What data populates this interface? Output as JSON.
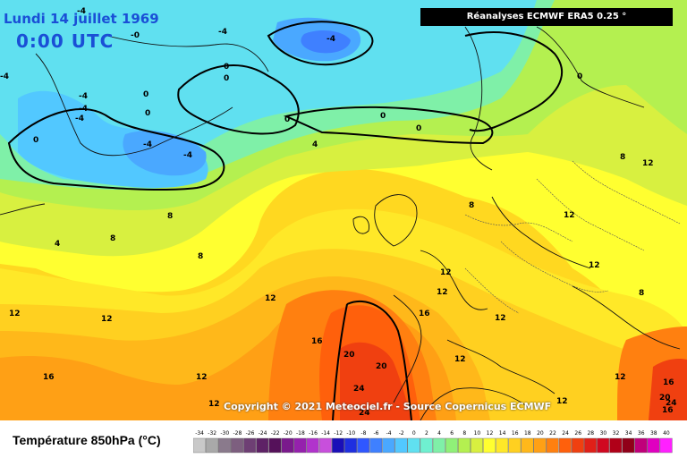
{
  "header": {
    "date": "Lundi 14 juillet 1969",
    "time": "0:00 UTC",
    "source": "Réanalyses ECMWF ERA5 0.25 °"
  },
  "copyright": "Copyright © 2021 Meteociel.fr - Source Copernicus ECMWF",
  "legend": {
    "title": "Température 850hPa (°C)",
    "ticks": [
      "-34",
      "-32",
      "-30",
      "-28",
      "-26",
      "-24",
      "-22",
      "-20",
      "-18",
      "-16",
      "-14",
      "-12",
      "-10",
      "-8",
      "-6",
      "-4",
      "-2",
      "0",
      "2",
      "4",
      "6",
      "8",
      "10",
      "12",
      "14",
      "16",
      "18",
      "20",
      "22",
      "24",
      "26",
      "28",
      "30",
      "32",
      "34",
      "36",
      "38",
      "40"
    ],
    "colors": [
      "#c9c9c9",
      "#a9a9a9",
      "#8a7a8c",
      "#7d5f7f",
      "#6e3f74",
      "#5e2266",
      "#55115a",
      "#7a1a8c",
      "#9521ad",
      "#b133cc",
      "#c84fdc",
      "#1a0fb8",
      "#1f2fe0",
      "#2f57ff",
      "#3f80ff",
      "#4aa8ff",
      "#52c8ff",
      "#60e0f0",
      "#6ff0d0",
      "#7ff0a8",
      "#90f078",
      "#b4f050",
      "#d8f040",
      "#ffff30",
      "#ffe828",
      "#ffd020",
      "#ffb81a",
      "#ffa015",
      "#ff8010",
      "#ff600c",
      "#f04010",
      "#e02018",
      "#d00820",
      "#b00018",
      "#900018",
      "#c0007a",
      "#e000c0",
      "#ff20ff"
    ]
  },
  "map": {
    "labels": [
      "-4",
      "-0",
      "0",
      "0",
      "-4",
      "0",
      "-4",
      "-4",
      "-4",
      "-4",
      "-4",
      "0",
      "0",
      "0",
      "0",
      "0",
      "0",
      "-4",
      "-4",
      "4",
      "8",
      "8",
      "4",
      "8",
      "12",
      "8",
      "12",
      "12",
      "12",
      "16",
      "12",
      "16",
      "12",
      "12",
      "16",
      "20",
      "20",
      "24",
      "24",
      "12",
      "12",
      "12",
      "16",
      "12",
      "12",
      "12",
      "8",
      "12",
      "16",
      "20",
      "24",
      "8"
    ]
  }
}
